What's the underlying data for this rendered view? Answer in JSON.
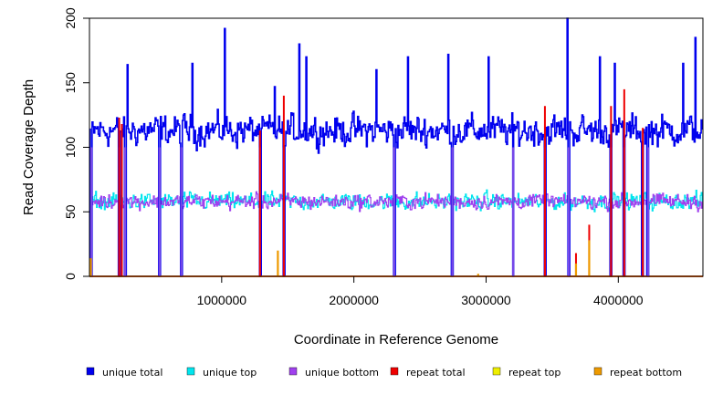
{
  "chart_data": {
    "type": "line",
    "title": "",
    "xlabel": "Coordinate in Reference Genome",
    "ylabel": "Read Coverage Depth",
    "xlim": [
      0,
      4640000
    ],
    "ylim": [
      0,
      200
    ],
    "x_ticks": [
      1000000,
      2000000,
      3000000,
      4000000
    ],
    "x_tick_labels": [
      "1000000",
      "2000000",
      "3000000",
      "4000000"
    ],
    "y_ticks": [
      0,
      50,
      100,
      150,
      200
    ],
    "y_tick_labels": [
      "0",
      "50",
      "100",
      "150",
      "200"
    ],
    "grid": false,
    "legend_position": "bottom",
    "series": [
      {
        "name": "unique total",
        "color": "#0000ee",
        "level": 113,
        "spread": 18
      },
      {
        "name": "unique top",
        "color": "#00e5ee",
        "level": 58,
        "spread": 10
      },
      {
        "name": "unique bottom",
        "color": "#a040ee",
        "level": 58,
        "spread": 9
      },
      {
        "name": "repeat total",
        "color": "#ee0000",
        "level": 0,
        "spread": 0
      },
      {
        "name": "repeat top",
        "color": "#eeee00",
        "level": 0,
        "spread": 0
      },
      {
        "name": "repeat bottom",
        "color": "#ee9a00",
        "level": 0,
        "spread": 0
      }
    ],
    "dropouts_x": [
      15000,
      225000,
      270000,
      530000,
      695000,
      1290000,
      1470000,
      2305000,
      2745000,
      3205000,
      3445000,
      3625000,
      3945000,
      4045000,
      4185000,
      4225000
    ],
    "peaks": [
      {
        "x": 1025000,
        "y": 192
      },
      {
        "x": 3615000,
        "y": 200
      },
      {
        "x": 4585000,
        "y": 185
      },
      {
        "x": 290000,
        "y": 164
      },
      {
        "x": 1400000,
        "y": 147
      },
      {
        "x": 1585000,
        "y": 180
      },
      {
        "x": 1640000,
        "y": 170
      },
      {
        "x": 2410000,
        "y": 170
      },
      {
        "x": 2715000,
        "y": 172
      },
      {
        "x": 3020000,
        "y": 170
      },
      {
        "x": 3860000,
        "y": 170
      },
      {
        "x": 3975000,
        "y": 165
      },
      {
        "x": 4490000,
        "y": 165
      },
      {
        "x": 780000,
        "y": 165
      },
      {
        "x": 2170000,
        "y": 160
      }
    ],
    "repeat_total_spikes": [
      {
        "x": 225000,
        "y": 123
      },
      {
        "x": 245000,
        "y": 118
      },
      {
        "x": 1290000,
        "y": 113
      },
      {
        "x": 1470000,
        "y": 140
      },
      {
        "x": 3445000,
        "y": 132
      },
      {
        "x": 3680000,
        "y": 18
      },
      {
        "x": 3780000,
        "y": 40
      },
      {
        "x": 3945000,
        "y": 132
      },
      {
        "x": 4045000,
        "y": 145
      },
      {
        "x": 4185000,
        "y": 115
      }
    ],
    "repeat_bottom_spikes": [
      {
        "x": 10000,
        "y": 14
      },
      {
        "x": 1425000,
        "y": 20
      },
      {
        "x": 2940000,
        "y": 2
      },
      {
        "x": 3680000,
        "y": 10
      },
      {
        "x": 3780000,
        "y": 28
      }
    ]
  }
}
